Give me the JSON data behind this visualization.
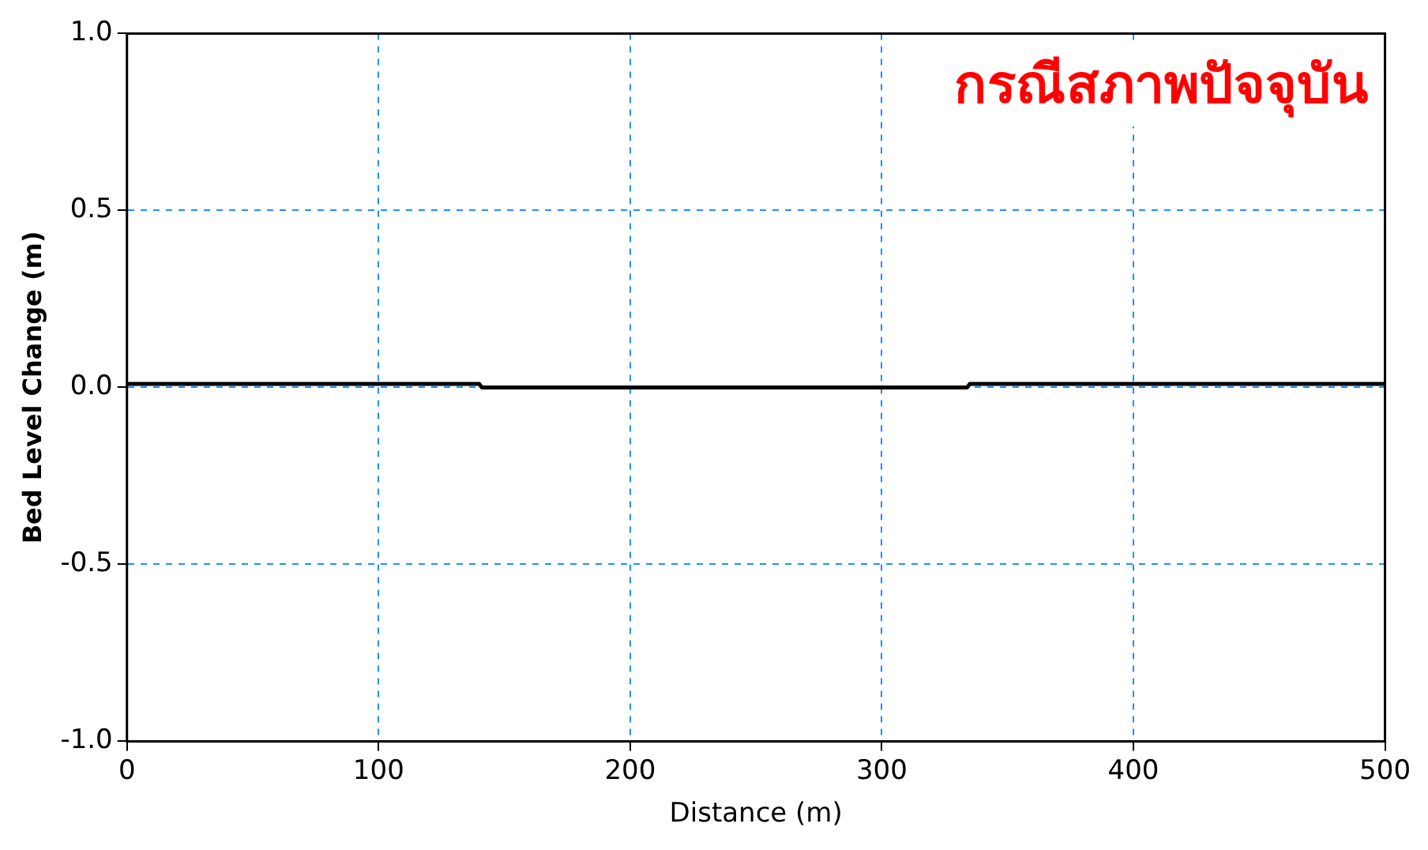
{
  "chart_data": {
    "type": "line",
    "title": "กรณีสภาพปัจจุบัน",
    "xlabel": "Distance (m)",
    "ylabel": "Bed Level Change (m)",
    "series": [
      {
        "color": "#000000",
        "x": [
          0,
          140,
          141,
          334,
          335,
          500
        ],
        "values": [
          0.01,
          0.01,
          0,
          0,
          0.01,
          0.01
        ]
      }
    ],
    "xlim": [
      0,
      500
    ],
    "xticks": [
      0,
      100,
      200,
      300,
      400,
      500
    ],
    "ylim": [
      -1,
      1
    ],
    "yticks": [
      {
        "value": -1,
        "label": "-1.0"
      },
      {
        "value": -0.5,
        "label": "-0.5"
      },
      {
        "value": 0,
        "label": "0.0"
      },
      {
        "value": 0.5,
        "label": "0.5"
      },
      {
        "value": 1,
        "label": "1.0"
      }
    ],
    "grid": true,
    "legend": false,
    "marker": "none",
    "line_style": "solid"
  }
}
